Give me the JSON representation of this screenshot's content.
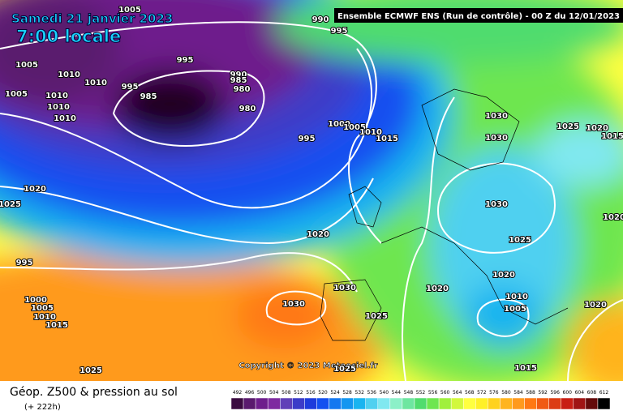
{
  "header": {
    "date": "Samedi 21 janvier 2023",
    "time": "7:00 locale",
    "model": "Ensemble ECMWF ENS  (Run de contrôle)  - 00 Z du 12/01/2023"
  },
  "map": {
    "isobar_labels": [
      "1005",
      "1005",
      "1010",
      "1010",
      "1010",
      "1010",
      "1010",
      "1005",
      "995",
      "995",
      "985",
      "990",
      "985",
      "980",
      "980",
      "1000",
      "1005",
      "1010",
      "1015",
      "995",
      "990",
      "995",
      "1020",
      "1025",
      "995",
      "1000",
      "1005",
      "1010",
      "1015",
      "1020",
      "1030",
      "1030",
      "1025",
      "1030",
      "1030",
      "1030",
      "1025",
      "1020",
      "1020",
      "1010",
      "1005",
      "1015",
      "1025",
      "1025",
      "1025",
      "1020",
      "1015",
      "1020",
      "1020"
    ],
    "copyright": "Copyright © 2023 Meteociel.fr"
  },
  "footer": {
    "title": "Géop. Z500 & pression au sol",
    "lead": "(+ 222h)"
  },
  "legend": {
    "values": [
      492,
      496,
      500,
      504,
      508,
      512,
      516,
      520,
      524,
      528,
      532,
      536,
      540,
      544,
      548,
      552,
      556,
      560,
      564,
      568,
      572,
      576,
      580,
      584,
      588,
      592,
      596,
      600,
      604,
      608,
      612
    ],
    "colors": [
      "#3a0a40",
      "#5a1a6e",
      "#6e1e8c",
      "#7e2aa0",
      "#6040b8",
      "#3c3cc8",
      "#1e3cdc",
      "#1450f0",
      "#1478f0",
      "#1496f0",
      "#19b4f0",
      "#50d0f0",
      "#80e8f0",
      "#8cf0c8",
      "#6ee6a0",
      "#50dc6e",
      "#6ee650",
      "#a0f03c",
      "#d2f83c",
      "#ffff40",
      "#fff028",
      "#ffd21e",
      "#ffb41e",
      "#ff9a1e",
      "#ff7814",
      "#f05a14",
      "#dc3c14",
      "#c81e14",
      "#a01414",
      "#640a0a",
      "#000000"
    ]
  }
}
